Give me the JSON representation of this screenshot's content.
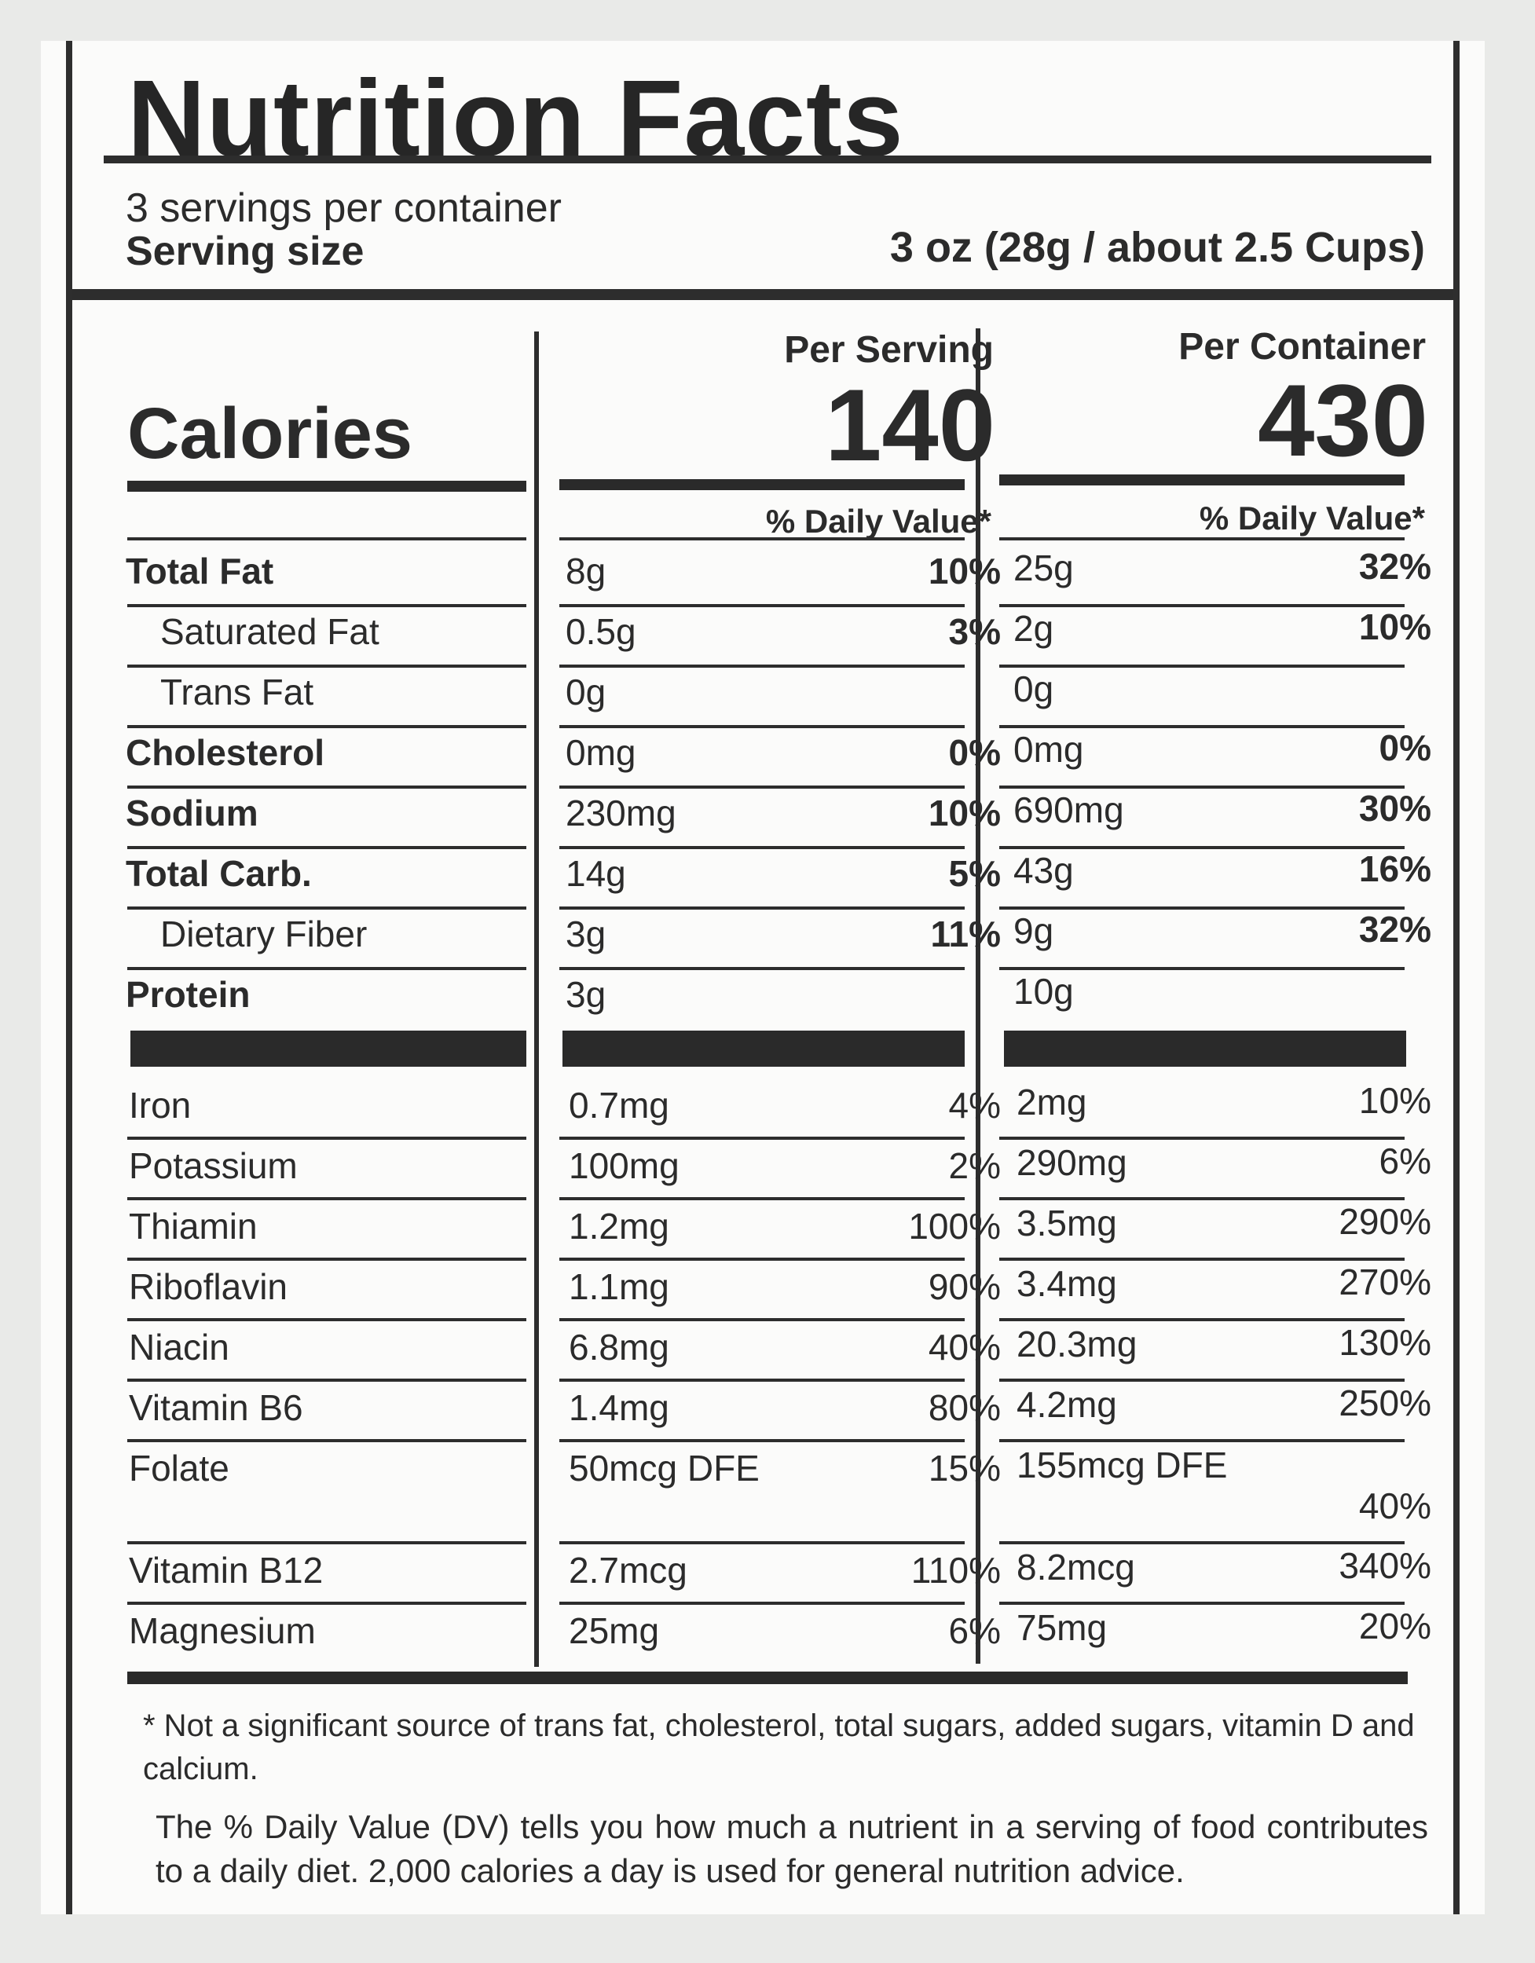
{
  "title": "Nutrition Facts",
  "servings": "3 servings per container",
  "serving_size_label": "Serving size",
  "serving_size_value": "3 oz (28g / about 2.5 Cups)",
  "calories_label": "Calories",
  "per_serving_label": "Per Serving",
  "per_container_label": "Per Container",
  "calories_serving": "140",
  "calories_container": "430",
  "dv_header": "% Daily Value*",
  "nutrients": [
    {
      "name": "Total Fat",
      "bold": true,
      "s_amt": "8g",
      "s_pct": "10%",
      "c_amt": "25g",
      "c_pct": "32%"
    },
    {
      "name": "Saturated Fat",
      "indent": true,
      "s_amt": "0.5g",
      "s_pct": "3%",
      "c_amt": "2g",
      "c_pct": "10%"
    },
    {
      "name": "Trans Fat",
      "indent": true,
      "s_amt": "0g",
      "s_pct": "",
      "c_amt": "0g",
      "c_pct": ""
    },
    {
      "name": "Cholesterol",
      "bold": true,
      "s_amt": "0mg",
      "s_pct": "0%",
      "c_amt": "0mg",
      "c_pct": "0%"
    },
    {
      "name": "Sodium",
      "bold": true,
      "s_amt": "230mg",
      "s_pct": "10%",
      "c_amt": "690mg",
      "c_pct": "30%"
    },
    {
      "name": "Total Carb.",
      "bold": true,
      "s_amt": "14g",
      "s_pct": "5%",
      "c_amt": "43g",
      "c_pct": "16%"
    },
    {
      "name": "Dietary Fiber",
      "indent": true,
      "s_amt": "3g",
      "s_pct": "11%",
      "c_amt": "9g",
      "c_pct": "32%"
    },
    {
      "name": "Protein",
      "bold": true,
      "s_amt": "3g",
      "s_pct": "",
      "c_amt": "10g",
      "c_pct": ""
    }
  ],
  "vitamins": [
    {
      "name": "Iron",
      "s_amt": "0.7mg",
      "s_pct": "4%",
      "c_amt": "2mg",
      "c_pct": "10%"
    },
    {
      "name": "Potassium",
      "s_amt": "100mg",
      "s_pct": "2%",
      "c_amt": "290mg",
      "c_pct": "6%"
    },
    {
      "name": "Thiamin",
      "s_amt": "1.2mg",
      "s_pct": "100%",
      "c_amt": "3.5mg",
      "c_pct": "290%"
    },
    {
      "name": "Riboflavin",
      "s_amt": "1.1mg",
      "s_pct": "90%",
      "c_amt": "3.4mg",
      "c_pct": "270%"
    },
    {
      "name": "Niacin",
      "s_amt": "6.8mg",
      "s_pct": "40%",
      "c_amt": "20.3mg",
      "c_pct": "130%"
    },
    {
      "name": "Vitamin B6",
      "s_amt": "1.4mg",
      "s_pct": "80%",
      "c_amt": "4.2mg",
      "c_pct": "250%"
    },
    {
      "name": "Folate",
      "s_amt": "50mcg DFE",
      "s_pct": "15%",
      "c_amt": "155mcg DFE",
      "c_pct": "40%"
    },
    {
      "name": "Vitamin B12",
      "s_amt": "2.7mcg",
      "s_pct": "110%",
      "c_amt": "8.2mcg",
      "c_pct": "340%"
    },
    {
      "name": "Magnesium",
      "s_amt": "25mg",
      "s_pct": "6%",
      "c_amt": "75mg",
      "c_pct": "20%"
    }
  ],
  "footnote": "* Not a significant source of trans fat, cholesterol, total sugars, added sugars, vitamin D and calcium.",
  "dv_note": "The % Daily Value (DV) tells you how much a nutrient in a serving of food contributes to a daily diet. 2,000 calories a day is used for general nutrition advice."
}
